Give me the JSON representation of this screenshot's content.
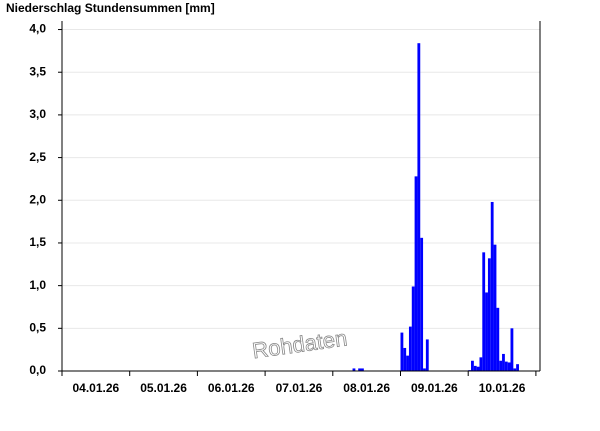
{
  "chart_data": {
    "type": "bar",
    "title": "Niederschlag Stundensummen [mm]",
    "annotation": "Rohdaten",
    "color": "#0000ff",
    "grid": true,
    "categories": [
      "04.01.26",
      "05.01.26",
      "06.01.26",
      "07.01.26",
      "08.01.26",
      "09.01.26",
      "10.01.26"
    ],
    "values": [
      [
        0,
        0,
        0,
        0,
        0,
        0,
        0,
        0,
        0,
        0,
        0,
        0,
        0,
        0,
        0,
        0,
        0,
        0,
        0,
        0,
        0,
        0,
        0,
        0
      ],
      [
        0,
        0,
        0,
        0,
        0,
        0,
        0,
        0,
        0,
        0,
        0,
        0,
        0,
        0,
        0,
        0,
        0,
        0,
        0,
        0,
        0,
        0,
        0,
        0
      ],
      [
        0,
        0,
        0,
        0,
        0,
        0,
        0,
        0,
        0,
        0,
        0,
        0,
        0,
        0,
        0,
        0,
        0,
        0,
        0,
        0,
        0,
        0,
        0,
        0
      ],
      [
        0,
        0,
        0,
        0,
        0,
        0,
        0,
        0,
        0,
        0,
        0,
        0,
        0,
        0,
        0,
        0,
        0,
        0,
        0,
        0,
        0,
        0,
        0,
        0
      ],
      [
        0,
        0,
        0,
        0,
        0,
        0,
        0,
        0.03,
        0,
        0.03,
        0.03,
        0,
        0,
        0,
        0,
        0,
        0,
        0,
        0,
        0,
        0,
        0,
        0,
        0
      ],
      [
        0.45,
        0.27,
        0.18,
        0.52,
        0.99,
        2.28,
        3.84,
        1.56,
        0.03,
        0.37,
        0,
        0,
        0,
        0,
        0,
        0,
        0,
        0,
        0,
        0,
        0,
        0,
        0,
        0
      ],
      [
        0.01,
        0.12,
        0.06,
        0.05,
        0.16,
        1.39,
        0.92,
        1.32,
        1.98,
        1.48,
        0.74,
        0.12,
        0.2,
        0.11,
        0.1,
        0.5,
        0.03,
        0.08,
        0,
        0,
        0,
        0,
        0,
        0
      ]
    ],
    "ylim": [
      0,
      4.1
    ],
    "yticks": [
      {
        "value": 0,
        "label": "0,0"
      },
      {
        "value": 0.5,
        "label": "0,5"
      },
      {
        "value": 1,
        "label": "1,0"
      },
      {
        "value": 1.5,
        "label": "1,5"
      },
      {
        "value": 2,
        "label": "2,0"
      },
      {
        "value": 2.5,
        "label": "2,5"
      },
      {
        "value": 3,
        "label": "3,0"
      },
      {
        "value": 3.5,
        "label": "3,5"
      },
      {
        "value": 4,
        "label": "4,0"
      }
    ]
  }
}
